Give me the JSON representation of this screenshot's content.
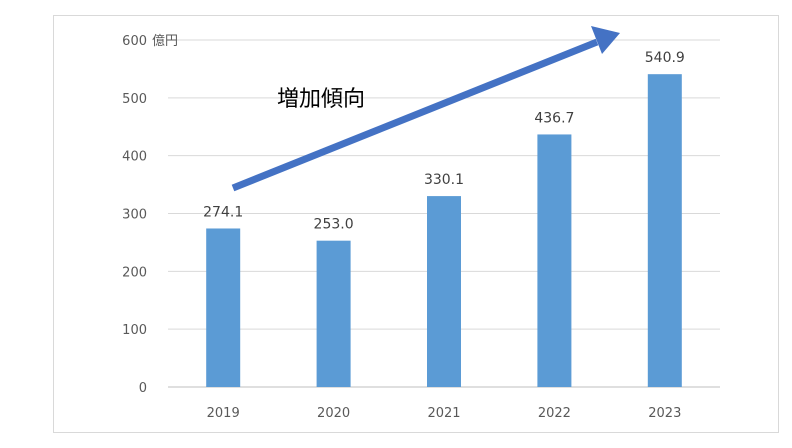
{
  "chart_data": {
    "type": "bar",
    "title": "",
    "xlabel": "",
    "ylabel": "",
    "y_unit": "億円",
    "categories": [
      "2019",
      "2020",
      "2021",
      "2022",
      "2023"
    ],
    "values": [
      274.1,
      253.0,
      330.1,
      436.7,
      540.9
    ],
    "value_labels": [
      "274.1",
      "253.0",
      "330.1",
      "436.7",
      "540.9"
    ],
    "ylim": [
      0,
      600
    ],
    "yticks": [
      {
        "value": 0,
        "label": "0"
      },
      {
        "value": 100,
        "label": "100"
      },
      {
        "value": 200,
        "label": "200"
      },
      {
        "value": 300,
        "label": "300"
      },
      {
        "value": 400,
        "label": "400"
      },
      {
        "value": 500,
        "label": "500"
      },
      {
        "value": 600,
        "label": "600"
      }
    ],
    "grid": true,
    "legend": "none",
    "bar_color": "#5b9bd5",
    "annotation": {
      "text": "増加傾向",
      "arrow_color": "#4472c4",
      "arrow_direction": "up-right"
    }
  }
}
